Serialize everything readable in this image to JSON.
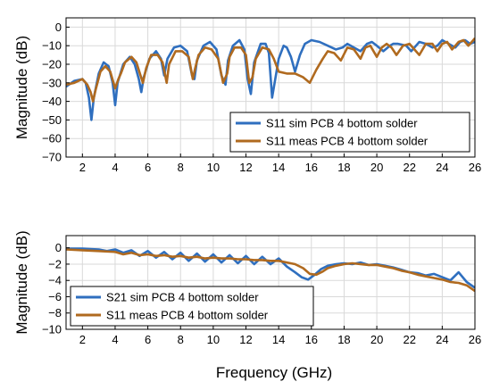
{
  "figure": {
    "xlabel": "Frequency (GHz)"
  },
  "colors": {
    "sim": "#2f6fbf",
    "meas": "#b06a1f",
    "grid": "#d9d9d9",
    "axis": "#000000"
  },
  "chart_data": [
    {
      "type": "line",
      "ylabel": "Magnitude (dB)",
      "xlim": [
        1,
        26
      ],
      "ylim": [
        -70,
        5
      ],
      "xticks": [
        2,
        4,
        6,
        8,
        10,
        12,
        14,
        16,
        18,
        20,
        22,
        24,
        26
      ],
      "yticks": [
        0,
        -10,
        -20,
        -30,
        -40,
        -50,
        -60,
        -70
      ],
      "grid": true,
      "legend_position": "lower-right",
      "series": [
        {
          "name": "S11 sim PCB 4 bottom solder",
          "color": "#2f6fbf",
          "x": [
            1.0,
            1.5,
            2.0,
            2.2,
            2.4,
            2.55,
            2.7,
            3.0,
            3.3,
            3.6,
            3.85,
            4.0,
            4.15,
            4.5,
            4.9,
            5.2,
            5.45,
            5.6,
            5.75,
            6.1,
            6.5,
            6.8,
            7.0,
            7.2,
            7.6,
            8.0,
            8.4,
            8.7,
            8.85,
            9.0,
            9.4,
            9.8,
            10.2,
            10.5,
            10.75,
            10.9,
            11.2,
            11.6,
            11.9,
            12.1,
            12.3,
            12.5,
            12.9,
            13.2,
            13.4,
            13.6,
            14.0,
            14.3,
            14.5,
            14.75,
            15.0,
            15.3,
            15.6,
            16.0,
            16.5,
            17.0,
            17.5,
            17.9,
            18.2,
            18.6,
            19.0,
            19.4,
            19.7,
            20.0,
            20.4,
            20.8,
            21.0,
            21.3,
            21.8,
            22.1,
            22.3,
            22.6,
            23.0,
            23.4,
            23.7,
            24.0,
            24.4,
            24.8,
            25.1,
            25.4,
            25.7,
            26.0
          ],
          "y": [
            -32,
            -29,
            -28,
            -30,
            -38,
            -50,
            -38,
            -25,
            -19,
            -21,
            -30,
            -42,
            -30,
            -20,
            -16,
            -20,
            -28,
            -35,
            -27,
            -17,
            -13,
            -17,
            -26,
            -17,
            -11,
            -10,
            -13,
            -26,
            -28,
            -18,
            -10,
            -8,
            -12,
            -26,
            -31,
            -18,
            -10,
            -7,
            -12,
            -28,
            -36,
            -19,
            -9,
            -9,
            -14,
            -38,
            -17,
            -10,
            -11,
            -16,
            -24,
            -15,
            -9,
            -7,
            -8,
            -10,
            -12,
            -11,
            -9,
            -11,
            -13,
            -9,
            -8,
            -10,
            -13,
            -10,
            -9,
            -9,
            -10,
            -13,
            -11,
            -8,
            -9,
            -11,
            -10,
            -7,
            -9,
            -11,
            -8,
            -7,
            -9,
            -8
          ]
        },
        {
          "name": "S11 meas PCB 4 bottom solder",
          "color": "#b06a1f",
          "x": [
            1.0,
            1.5,
            2.0,
            2.3,
            2.5,
            2.65,
            2.8,
            3.1,
            3.4,
            3.7,
            4.0,
            4.2,
            4.35,
            4.6,
            5.0,
            5.3,
            5.55,
            5.7,
            5.9,
            6.2,
            6.6,
            6.9,
            7.15,
            7.3,
            7.7,
            8.1,
            8.5,
            8.75,
            8.9,
            9.1,
            9.5,
            9.9,
            10.3,
            10.6,
            10.85,
            11.0,
            11.3,
            11.7,
            12.0,
            12.2,
            12.4,
            12.6,
            13.0,
            13.4,
            13.7,
            14.0,
            14.5,
            15.0,
            15.5,
            15.9,
            16.3,
            16.7,
            17.0,
            17.4,
            17.8,
            18.2,
            18.6,
            19.0,
            19.3,
            19.6,
            20.0,
            20.3,
            20.6,
            20.9,
            21.2,
            21.6,
            22.0,
            22.3,
            22.6,
            23.0,
            23.4,
            23.7,
            24.0,
            24.3,
            24.6,
            25.0,
            25.3,
            25.6,
            26.0
          ],
          "y": [
            -31,
            -30,
            -28,
            -31,
            -35,
            -40,
            -34,
            -24,
            -21,
            -24,
            -33,
            -28,
            -25,
            -19,
            -16,
            -19,
            -26,
            -30,
            -22,
            -15,
            -15,
            -19,
            -30,
            -20,
            -13,
            -13,
            -16,
            -28,
            -22,
            -15,
            -11,
            -12,
            -17,
            -30,
            -25,
            -16,
            -11,
            -11,
            -15,
            -30,
            -27,
            -17,
            -11,
            -12,
            -17,
            -24,
            -25,
            -25,
            -27,
            -30,
            -23,
            -17,
            -13,
            -14,
            -18,
            -11,
            -12,
            -17,
            -11,
            -10,
            -16,
            -11,
            -9,
            -11,
            -15,
            -10,
            -9,
            -12,
            -15,
            -9,
            -9,
            -13,
            -9,
            -8,
            -12,
            -8,
            -7,
            -10,
            -6
          ]
        }
      ]
    },
    {
      "type": "line",
      "ylabel": "Magnitude (dB)",
      "xlim": [
        1,
        26
      ],
      "ylim": [
        -10,
        1.5
      ],
      "xticks": [
        2,
        4,
        6,
        8,
        10,
        12,
        14,
        16,
        18,
        20,
        22,
        24,
        26
      ],
      "yticks": [
        0,
        -2,
        -4,
        -6,
        -8,
        -10
      ],
      "grid": true,
      "legend_position": "lower-left",
      "series": [
        {
          "name": "S21 sim PCB 4 bottom solder",
          "color": "#2f6fbf",
          "x": [
            1.0,
            2.0,
            3.0,
            3.5,
            4.0,
            4.5,
            5.0,
            5.5,
            6.0,
            6.5,
            7.0,
            7.5,
            8.0,
            8.5,
            9.0,
            9.5,
            10.0,
            10.5,
            11.0,
            11.5,
            12.0,
            12.5,
            13.0,
            13.5,
            14.0,
            14.5,
            15.0,
            15.4,
            15.8,
            16.2,
            16.6,
            17.0,
            17.5,
            18.0,
            18.5,
            19.0,
            19.5,
            20.0,
            20.5,
            21.0,
            21.5,
            22.0,
            22.5,
            23.0,
            23.5,
            24.0,
            24.5,
            25.0,
            25.5,
            26.0
          ],
          "y": [
            -0.1,
            -0.1,
            -0.2,
            -0.4,
            -0.2,
            -0.6,
            -0.3,
            -1.0,
            -0.4,
            -1.2,
            -0.5,
            -1.4,
            -0.6,
            -1.6,
            -0.7,
            -1.7,
            -0.8,
            -1.8,
            -0.9,
            -1.9,
            -1.0,
            -2.0,
            -1.1,
            -2.0,
            -1.3,
            -2.3,
            -3.0,
            -3.6,
            -3.9,
            -3.3,
            -2.6,
            -2.2,
            -2.0,
            -1.9,
            -2.0,
            -1.8,
            -2.1,
            -2.0,
            -2.2,
            -2.4,
            -2.7,
            -3.0,
            -3.1,
            -3.4,
            -3.2,
            -3.6,
            -4.0,
            -3.0,
            -4.2,
            -4.9
          ]
        },
        {
          "name": "S11 meas PCB 4 bottom solder",
          "color": "#b06a1f",
          "x": [
            1.0,
            2.0,
            3.0,
            4.0,
            4.5,
            5.0,
            5.5,
            6.0,
            6.5,
            7.0,
            7.5,
            8.0,
            8.5,
            9.0,
            9.5,
            10.0,
            10.5,
            11.0,
            11.5,
            12.0,
            12.5,
            13.0,
            13.5,
            14.0,
            14.5,
            15.0,
            15.5,
            15.9,
            16.3,
            16.7,
            17.0,
            17.5,
            18.0,
            18.5,
            19.0,
            19.5,
            20.0,
            20.5,
            21.0,
            21.5,
            22.0,
            22.5,
            23.0,
            23.5,
            24.0,
            24.5,
            25.0,
            25.5,
            26.0
          ],
          "y": [
            -0.2,
            -0.3,
            -0.4,
            -0.5,
            -0.8,
            -0.6,
            -0.9,
            -0.8,
            -1.0,
            -0.9,
            -1.1,
            -1.0,
            -1.2,
            -1.1,
            -1.3,
            -1.2,
            -1.3,
            -1.3,
            -1.4,
            -1.4,
            -1.5,
            -1.5,
            -1.6,
            -1.6,
            -1.8,
            -2.0,
            -2.5,
            -3.2,
            -3.3,
            -2.9,
            -2.5,
            -2.2,
            -2.0,
            -1.9,
            -2.0,
            -2.1,
            -2.1,
            -2.3,
            -2.5,
            -2.8,
            -3.0,
            -3.3,
            -3.5,
            -3.7,
            -3.9,
            -4.2,
            -4.3,
            -4.6,
            -5.3
          ]
        }
      ]
    }
  ]
}
